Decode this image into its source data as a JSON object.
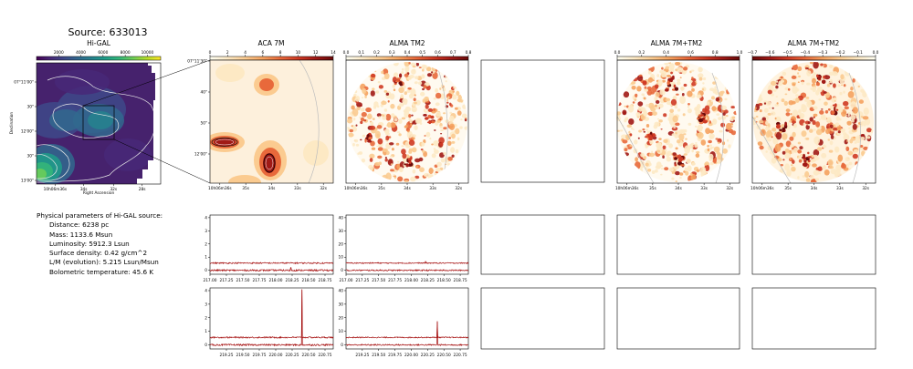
{
  "source_title": "Source: 633013",
  "params": {
    "header": "Physical parameters of Hi-GAL source:",
    "lines": [
      "Distance: 6238 pc",
      "Mass: 1133.6 Msun",
      "Luminosity: 5912.3 Lsun",
      "Surface density: 0.42 g/cm^2",
      "L/M (evolution): 5.215 Lsun/Msun",
      "Bolometric temperature: 45.6 K"
    ]
  },
  "colors": {
    "viridis": [
      "#440154",
      "#482878",
      "#3e4989",
      "#31688e",
      "#26828e",
      "#1f9e89",
      "#35b779",
      "#6ece58",
      "#b5de2b",
      "#fde725"
    ],
    "heat": [
      "#fffff2",
      "#fde9c4",
      "#fbcb90",
      "#f5a25f",
      "#e8693b",
      "#cf3a24",
      "#a11a16",
      "#6a0a0a"
    ],
    "spectrum": "#a50f0f"
  },
  "chart_data": [
    {
      "type": "heatmap",
      "panel": "higal",
      "title": "Hi-GAL",
      "colorbar_ticks": [
        "2000",
        "4000",
        "6000",
        "8000",
        "10000"
      ],
      "xticks": [
        "10h06m36s",
        "34s",
        "32s",
        "28s"
      ],
      "yticks": [
        "07°11'00\"",
        "30\"",
        "12'00\"",
        "30\"",
        "13'00\""
      ],
      "xlabel": "Right Ascension",
      "ylabel": "Declination"
    },
    {
      "type": "heatmap",
      "panel": "aca",
      "title": "ACA 7M",
      "colorbar_ticks": [
        "0",
        "2",
        "4",
        "6",
        "8",
        "10",
        "12",
        "14"
      ],
      "xticks": [
        "10h06m36s",
        "35s",
        "34s",
        "33s",
        "32s"
      ],
      "yticks": [
        "07°11'30\"",
        "40\"",
        "50\"",
        "12'00\""
      ]
    },
    {
      "type": "heatmap",
      "panel": "alma_tm2",
      "title": "ALMA TM2",
      "colorbar_ticks": [
        "0.0",
        "0.1",
        "0.2",
        "0.3",
        "0.4",
        "0.5",
        "0.6",
        "0.7",
        "0.8"
      ],
      "xticks": [
        "10h06m36s",
        "35s",
        "34s",
        "33s",
        "32s"
      ]
    },
    {
      "type": "heatmap",
      "panel": "alma_7m_tm2",
      "title": "ALMA 7M+TM2",
      "colorbar_ticks": [
        "0.0",
        "0.2",
        "0.4",
        "0.6",
        "0.8",
        "1.0"
      ],
      "xticks": [
        "10h06m36s",
        "35s",
        "34s",
        "33s",
        "32s"
      ]
    },
    {
      "type": "heatmap",
      "panel": "alma_7m_tm2_b",
      "title": "ALMA 7M+TM2",
      "colorbar_ticks": [
        "−0.7",
        "−0.6",
        "−0.5",
        "−0.4",
        "−0.3",
        "−0.2",
        "−0.1",
        "0.0"
      ],
      "xticks": [
        "10h06m36s",
        "35s",
        "34s",
        "33s",
        "32s"
      ]
    },
    {
      "type": "line",
      "panel": "spec_aca_1",
      "x": [
        217.0,
        218.875
      ],
      "xlim": [
        217.0,
        218.875
      ],
      "ylim": [
        -0.3,
        4.2
      ],
      "xticks": [
        "217.00",
        "217.25",
        "217.50",
        "217.75",
        "218.00",
        "218.25",
        "218.50",
        "218.75"
      ],
      "yticks": [
        "0",
        "1",
        "2",
        "3",
        "4"
      ],
      "series": [
        {
          "baseline": 0.55,
          "noise": 0.05,
          "peaks": []
        },
        {
          "baseline": 0.0,
          "noise": 0.06,
          "peaks": [
            [
              218.23,
              0.2
            ]
          ]
        }
      ]
    },
    {
      "type": "line",
      "panel": "spec_tm2_1",
      "xlim": [
        217.0,
        218.875
      ],
      "ylim": [
        -3,
        42
      ],
      "xticks": [
        "217.00",
        "217.25",
        "217.50",
        "217.75",
        "218.00",
        "218.25",
        "218.50",
        "218.75"
      ],
      "yticks": [
        "0",
        "10",
        "20",
        "30",
        "40"
      ],
      "series": [
        {
          "baseline": 5.5,
          "noise": 0.4,
          "peaks": [
            [
              218.22,
              1.5
            ]
          ]
        },
        {
          "baseline": 0.0,
          "noise": 0.5,
          "peaks": []
        }
      ]
    },
    {
      "type": "line",
      "panel": "spec_aca_2",
      "xlim": [
        219.0,
        220.875
      ],
      "ylim": [
        -0.3,
        4.2
      ],
      "xticks": [
        "219.25",
        "219.50",
        "219.75",
        "220.00",
        "220.25",
        "220.50",
        "220.75"
      ],
      "yticks": [
        "0",
        "1",
        "2",
        "3",
        "4"
      ],
      "series": [
        {
          "baseline": 0.55,
          "noise": 0.05,
          "peaks": [
            [
              220.4,
              3.5
            ]
          ]
        },
        {
          "baseline": 0.0,
          "noise": 0.06,
          "peaks": [
            [
              220.4,
              4.1
            ]
          ]
        }
      ]
    },
    {
      "type": "line",
      "panel": "spec_tm2_2",
      "xlim": [
        219.0,
        220.875
      ],
      "ylim": [
        -3,
        42
      ],
      "xticks": [
        "219.25",
        "219.50",
        "219.75",
        "220.00",
        "220.25",
        "220.50",
        "220.75"
      ],
      "yticks": [
        "0",
        "10",
        "20",
        "30",
        "40"
      ],
      "series": [
        {
          "baseline": 5.5,
          "noise": 0.4,
          "peaks": [
            [
              220.4,
              12
            ]
          ]
        },
        {
          "baseline": 0.0,
          "noise": 0.5,
          "peaks": [
            [
              220.4,
              17
            ]
          ]
        }
      ]
    }
  ]
}
